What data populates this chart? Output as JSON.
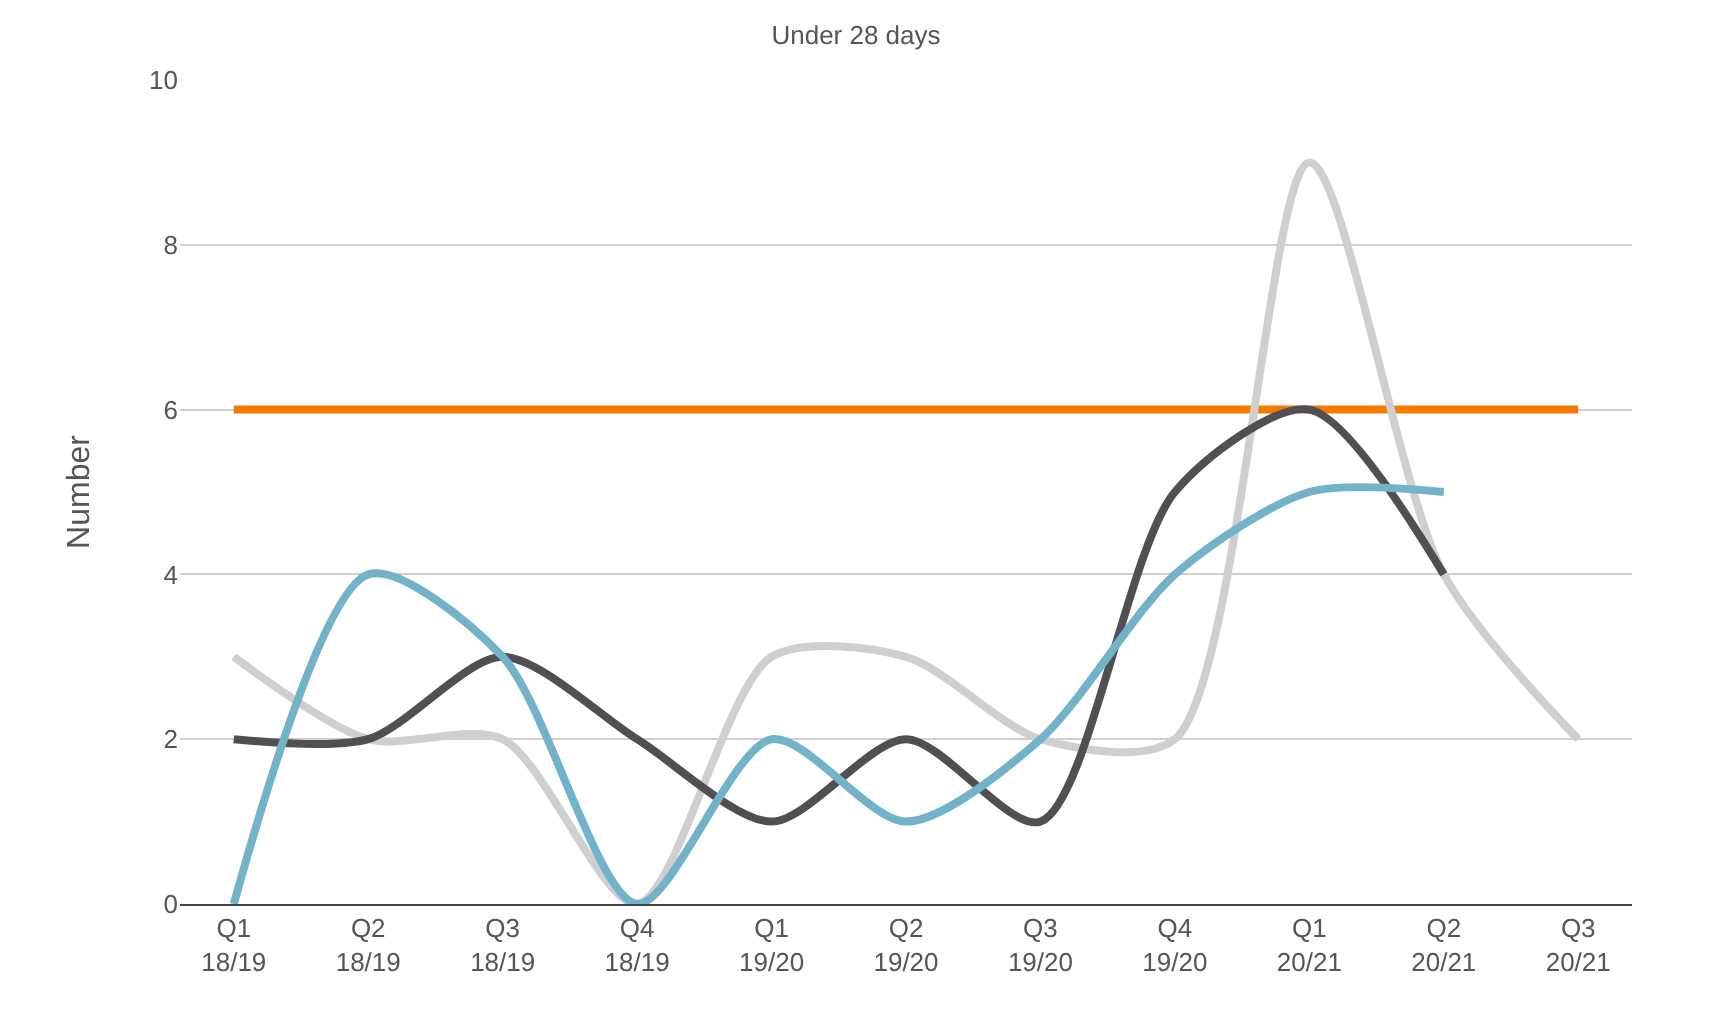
{
  "chart_data": {
    "type": "line",
    "title": "Under 28 days",
    "ylabel": "Number",
    "categories": [
      "Q1\n18/19",
      "Q2\n18/19",
      "Q3\n18/19",
      "Q4\n18/19",
      "Q1\n19/20",
      "Q2\n19/20",
      "Q3\n19/20",
      "Q4\n19/20",
      "Q1\n20/21",
      "Q2\n20/21",
      "Q3\n20/21"
    ],
    "series": [
      {
        "color": "#f57c00",
        "values": [
          6,
          6,
          6,
          6,
          6,
          6,
          6,
          6,
          6,
          6,
          6
        ]
      },
      {
        "color": "#cfcfcf",
        "values": [
          3,
          2,
          2,
          0,
          3,
          3,
          2,
          2,
          9,
          4,
          2
        ]
      },
      {
        "color": "#505052",
        "values": [
          2,
          2,
          3,
          2,
          1,
          2,
          1,
          5,
          6,
          4,
          null
        ]
      },
      {
        "color": "#72b3c9",
        "values": [
          0,
          4,
          3,
          0,
          2,
          1,
          2,
          4,
          5,
          5,
          null
        ]
      }
    ],
    "ylim": [
      0,
      10
    ],
    "yticks": [
      0,
      2,
      4,
      6,
      8,
      10
    ],
    "grid": "y",
    "line_style": "solid",
    "marker": "none"
  }
}
